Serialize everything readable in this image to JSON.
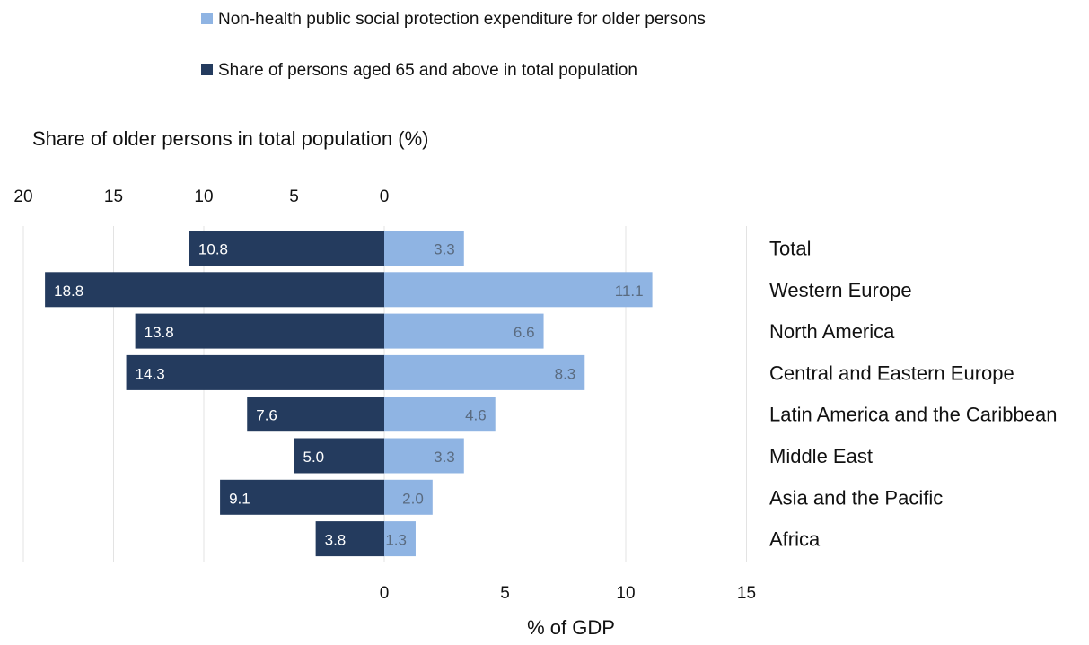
{
  "colors": {
    "expenditure": "#8fb4e3",
    "share": "#243b5e",
    "grid": "#e3e3e3",
    "text": "#111111",
    "label_light": "#5a6b80",
    "label_dark": "#ffffff"
  },
  "chart_data": {
    "type": "bar",
    "orientation": "horizontal-diverging",
    "legend": {
      "placement": "top",
      "entries": [
        {
          "label": "Non-health public social protection expenditure for older persons",
          "series": "expenditure"
        },
        {
          "label": "Share of persons aged 65 and above in total population",
          "series": "share"
        }
      ]
    },
    "top_axis": {
      "title": "Share of older persons in total population (%)",
      "ticks": [
        "20",
        "15",
        "10",
        "5",
        "0"
      ],
      "range": [
        0,
        20
      ],
      "direction": "left"
    },
    "bottom_axis": {
      "title": "% of GDP",
      "ticks": [
        "0",
        "5",
        "10",
        "15"
      ],
      "range": [
        0,
        15
      ],
      "direction": "right"
    },
    "grid": true,
    "categories": [
      "Total",
      "Western Europe",
      "North America",
      "Central and Eastern Europe",
      "Latin America and the Caribbean",
      "Middle East",
      "Asia and the Pacific",
      "Africa"
    ],
    "series": [
      {
        "name": "Share of persons aged 65 and above in total population",
        "key": "share",
        "values": [
          10.8,
          18.8,
          13.8,
          14.3,
          7.6,
          5.0,
          9.1,
          3.8
        ],
        "labels": [
          "10.8",
          "18.8",
          "13.8",
          "14.3",
          "7.6",
          "5.0",
          "9.1",
          "3.8"
        ]
      },
      {
        "name": "Non-health public social protection expenditure for older persons",
        "key": "expenditure",
        "values": [
          3.3,
          11.1,
          6.6,
          8.3,
          4.6,
          3.3,
          2.0,
          1.3
        ],
        "labels": [
          "3.3",
          "11.1",
          "6.6",
          "8.3",
          "4.6",
          "3.3",
          "2.0",
          "1.3"
        ]
      }
    ]
  }
}
